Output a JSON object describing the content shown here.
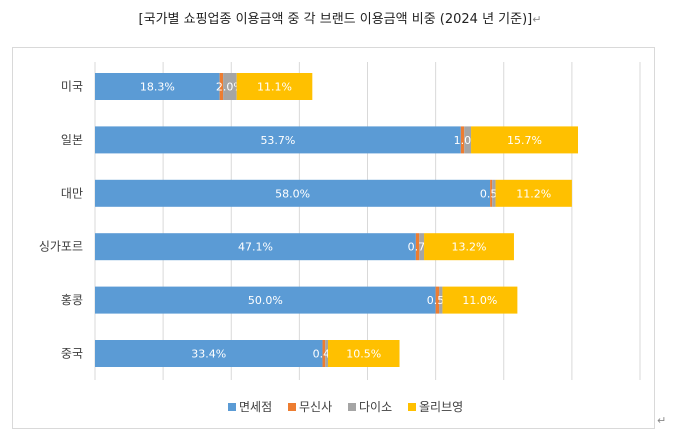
{
  "title": "[국가별 쇼핑업종 이용금액 중 각 브랜드 이용금액 비중   (2024 년 기준)]",
  "chart_data": {
    "type": "bar",
    "orientation": "horizontal",
    "stacked": true,
    "categories": [
      "미국",
      "일본",
      "대만",
      "싱가포르",
      "홍콩",
      "중국"
    ],
    "series": [
      {
        "name": "면세점",
        "color": "#5B9BD5",
        "values": [
          18.3,
          53.7,
          58.0,
          47.1,
          50.0,
          33.4
        ],
        "labels": [
          "18.3%",
          "53.7%",
          "58.0%",
          "47.1%",
          "50.0%",
          "33.4%"
        ]
      },
      {
        "name": "무신사",
        "color": "#ED7D31",
        "values": [
          0.5,
          0.5,
          0.3,
          0.5,
          0.5,
          0.4
        ],
        "labels": [
          "",
          "",
          "",
          "",
          "",
          ""
        ]
      },
      {
        "name": "다이소",
        "color": "#A5A5A5",
        "values": [
          2.0,
          1.0,
          0.5,
          0.7,
          0.5,
          0.4
        ],
        "labels": [
          "2.0%",
          "1.0%",
          "0.5%",
          "0.7%",
          "0.5%",
          "0.4%"
        ]
      },
      {
        "name": "올리브영",
        "color": "#FFC000",
        "values": [
          11.1,
          15.7,
          11.2,
          13.2,
          11.0,
          10.5
        ],
        "labels": [
          "11.1%",
          "15.7%",
          "11.2%",
          "13.2%",
          "11.0%",
          "10.5%"
        ]
      }
    ],
    "xlim": [
      0,
      80
    ],
    "grid": true,
    "legend_position": "bottom"
  }
}
